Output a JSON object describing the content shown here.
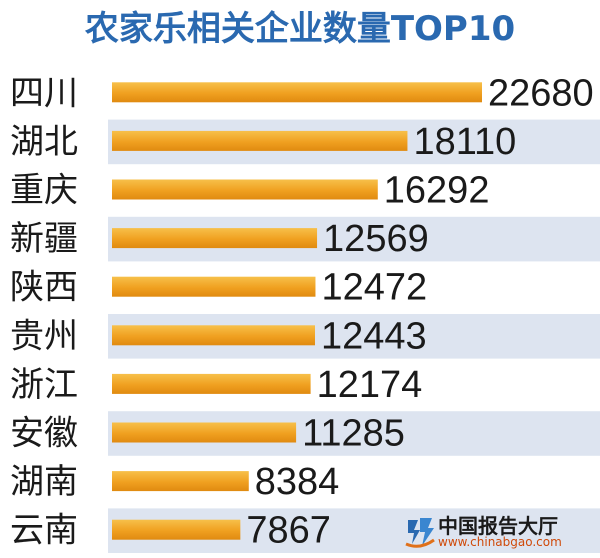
{
  "title": "农家乐相关企业数量TOP10",
  "chart_data": {
    "type": "bar",
    "orientation": "horizontal",
    "title": "农家乐相关企业数量TOP10",
    "categories": [
      "四川",
      "湖北",
      "重庆",
      "新疆",
      "陕西",
      "贵州",
      "浙江",
      "安徽",
      "湖南",
      "云南"
    ],
    "values": [
      22680,
      18110,
      16292,
      12569,
      12472,
      12443,
      12174,
      11285,
      8384,
      7867
    ],
    "bar_color": "#f0a020",
    "band_color": "#dde4f0",
    "title_color": "#2a69b0",
    "grid": false,
    "legend": "none"
  },
  "watermark": {
    "name": "中国报告大厅",
    "url": "www.chinabgao.com"
  }
}
